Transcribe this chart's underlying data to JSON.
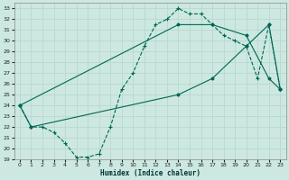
{
  "xlabel": "Humidex (Indice chaleur)",
  "xlim": [
    -0.5,
    23.5
  ],
  "ylim": [
    19,
    33.5
  ],
  "yticks": [
    19,
    20,
    21,
    22,
    23,
    24,
    25,
    26,
    27,
    28,
    29,
    30,
    31,
    32,
    33
  ],
  "xticks": [
    0,
    1,
    2,
    3,
    4,
    5,
    6,
    7,
    8,
    9,
    10,
    11,
    12,
    13,
    14,
    15,
    16,
    17,
    18,
    19,
    20,
    21,
    22,
    23
  ],
  "bg_color": "#cce8e0",
  "grid_color": "#b8d8d0",
  "line_color": "#006655",
  "dashed_x": [
    0,
    1,
    2,
    3,
    4,
    5,
    6,
    7,
    8,
    9,
    10,
    11,
    12,
    13,
    14,
    15,
    16,
    17,
    18,
    19,
    20,
    21,
    22,
    23
  ],
  "dashed_y": [
    24.0,
    22.0,
    22.0,
    21.5,
    20.5,
    19.2,
    19.2,
    19.5,
    22.0,
    25.5,
    27.0,
    29.5,
    31.5,
    32.0,
    33.0,
    32.5,
    32.5,
    31.5,
    30.5,
    30.0,
    29.5,
    26.5,
    31.5,
    25.5
  ],
  "upper_line_x": [
    0,
    14,
    17,
    20,
    22,
    23
  ],
  "upper_line_y": [
    24.0,
    31.5,
    31.5,
    30.5,
    26.5,
    25.5
  ],
  "lower_line_x": [
    0,
    1,
    14,
    17,
    20,
    22,
    23
  ],
  "lower_line_y": [
    24.0,
    22.0,
    25.0,
    26.5,
    29.5,
    31.5,
    25.5
  ]
}
